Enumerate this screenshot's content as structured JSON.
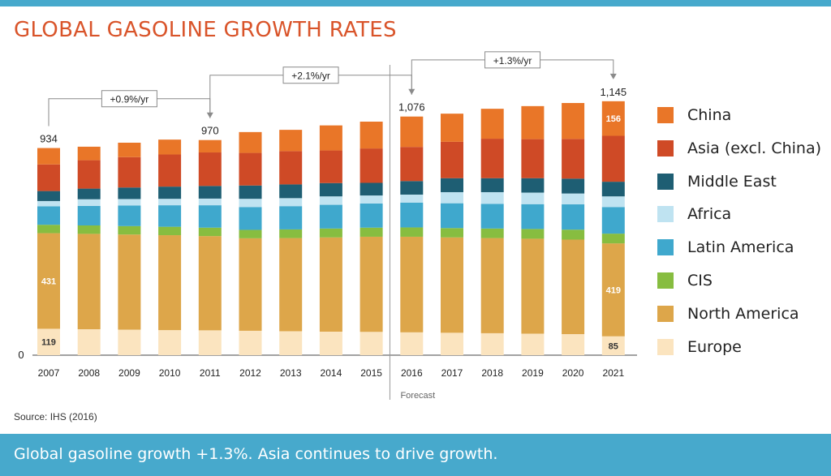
{
  "title": "GLOBAL GASOLINE GROWTH RATES",
  "source": "Source: IHS (2016)",
  "footer": "Global gasoline growth +1.3%. Asia continues to drive growth.",
  "chart_data": {
    "type": "bar",
    "stacked": true,
    "categories": [
      "2007",
      "2008",
      "2009",
      "2010",
      "2011",
      "2012",
      "2013",
      "2014",
      "2015",
      "2016",
      "2017",
      "2018",
      "2019",
      "2020",
      "2021"
    ],
    "ylim": [
      0,
      1200
    ],
    "y_ticks": [
      "0"
    ],
    "forecast_label": "Forecast",
    "forecast_start": "2016",
    "totals": {
      "2007": "934",
      "2011": "970",
      "2016": "1,076",
      "2021": "1,145"
    },
    "growth_annotations": [
      {
        "from": "2007",
        "to": "2011",
        "label": "+0.9%/yr"
      },
      {
        "from": "2011",
        "to": "2016",
        "label": "+2.1%/yr"
      },
      {
        "from": "2016",
        "to": "2021",
        "label": "+1.3%/yr"
      }
    ],
    "series": [
      {
        "name": "Europe",
        "color": "#fbe4bf",
        "values": [
          119,
          117,
          115,
          113,
          112,
          110,
          108,
          106,
          105,
          103,
          101,
          99,
          97,
          95,
          85
        ],
        "labels": {
          "2007": "119",
          "2021": "85"
        }
      },
      {
        "name": "North America",
        "color": "#dda64a",
        "values": [
          431,
          430,
          429,
          428,
          425,
          417,
          420,
          425,
          429,
          431,
          430,
          429,
          428,
          426,
          419
        ],
        "labels": {
          "2007": "431",
          "2021": "419"
        }
      },
      {
        "name": "CIS",
        "color": "#87bd40",
        "values": [
          38,
          38,
          38,
          38,
          38,
          38,
          39,
          40,
          41,
          42,
          42,
          43,
          44,
          45,
          44
        ]
      },
      {
        "name": "Latin America",
        "color": "#3fa8cd",
        "values": [
          83,
          88,
          93,
          97,
          101,
          103,
          105,
          107,
          109,
          112,
          112,
          111,
          112,
          114,
          120
        ]
      },
      {
        "name": "Africa",
        "color": "#bfe3f1",
        "values": [
          24,
          30,
          29,
          29,
          30,
          37,
          36,
          38,
          36,
          36,
          50,
          53,
          52,
          49,
          48
        ]
      },
      {
        "name": "Middle East",
        "color": "#1e5e73",
        "values": [
          45,
          48,
          52,
          55,
          57,
          60,
          62,
          60,
          57,
          61,
          63,
          63,
          65,
          67,
          66
        ]
      },
      {
        "name": "Asia (excl. China)",
        "color": "#cf4a26",
        "values": [
          120,
          128,
          137,
          145,
          151,
          147,
          150,
          147,
          155,
          154,
          164,
          178,
          176,
          179,
          207
        ]
      },
      {
        "name": "China",
        "color": "#e97628",
        "values": [
          74,
          61,
          65,
          67,
          56,
          94,
          96,
          113,
          121,
          137,
          127,
          135,
          149,
          162,
          156
        ],
        "labels": {
          "2021": "156"
        }
      }
    ]
  }
}
